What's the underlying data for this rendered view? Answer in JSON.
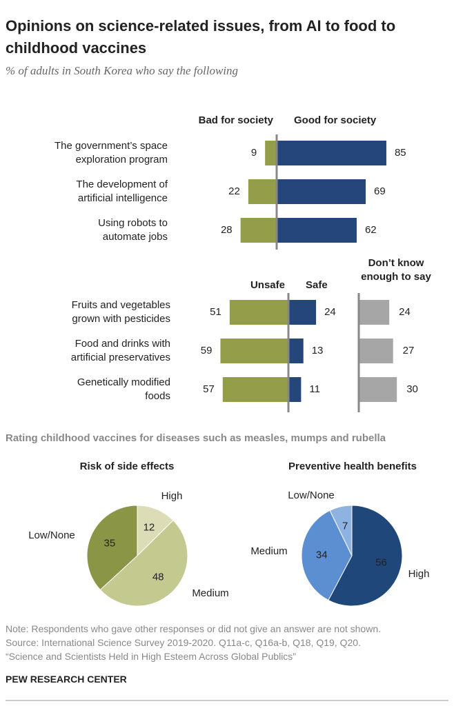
{
  "title": "Opinions on science-related issues, from AI to food to childhood vaccines",
  "subtitle": "% of adults in South Korea who say the following",
  "chart_data": [
    {
      "type": "bar",
      "categories": [
        "The government’s space\nexploration program",
        "The development of\nartificial intelligence",
        "Using robots to\nautomate jobs"
      ],
      "series": [
        {
          "name": "Bad for society",
          "color": "#949d48",
          "values": [
            9,
            22,
            28
          ]
        },
        {
          "name": "Good for society",
          "color": "#24467a",
          "values": [
            85,
            69,
            62
          ]
        }
      ]
    },
    {
      "type": "bar",
      "categories": [
        "Fruits and vegetables\ngrown with pesticides",
        "Food and drinks with\nartificial preservatives",
        "Genetically modified\nfoods"
      ],
      "series": [
        {
          "name": "Unsafe",
          "color": "#949d48",
          "values": [
            51,
            59,
            57
          ]
        },
        {
          "name": "Safe",
          "color": "#24467a",
          "values": [
            24,
            13,
            11
          ]
        },
        {
          "name": "Don’t know\nenough to say",
          "color": "#a6a6a6",
          "values": [
            24,
            27,
            30
          ]
        }
      ]
    },
    {
      "type": "pie",
      "title": "Risk of side effects",
      "categories": [
        "High",
        "Medium",
        "Low/None"
      ],
      "values": [
        12,
        48,
        35
      ],
      "colors": [
        "#dcdcb6",
        "#c4c98f",
        "#8b9546"
      ]
    },
    {
      "type": "pie",
      "title": "Preventive health benefits",
      "categories": [
        "High",
        "Medium",
        "Low/None"
      ],
      "values": [
        56,
        34,
        7
      ],
      "colors": [
        "#1f477a",
        "#5b8fd1",
        "#8fb3e0"
      ]
    }
  ],
  "vaccines_heading": "Rating childhood vaccines for diseases such as measles, mumps and rubella",
  "note": "Note: Respondents who gave other responses or did not give an answer are not shown.",
  "source": "Source: International Science Survey 2019-2020. Q11a-c, Q16a-b, Q18, Q19, Q20.",
  "report": "“Science and Scientists Held in High Esteem Across Global Publics”",
  "footer": "PEW RESEARCH CENTER"
}
